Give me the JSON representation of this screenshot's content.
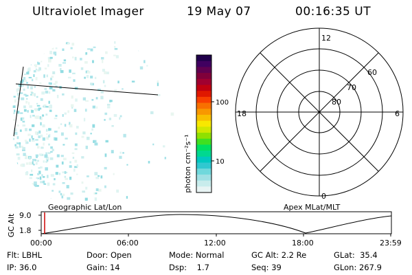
{
  "header": {
    "instrument": "Ultraviolet Imager",
    "date": "19 May 07",
    "time": "00:16:35 UT"
  },
  "colorbar": {
    "unit_label": "photon cm⁻²s⁻¹",
    "tick_labels": [
      "100",
      "10"
    ],
    "colors": [
      "#e8f4f4",
      "#c8ecec",
      "#a0e0e4",
      "#70d8dc",
      "#30c8d0",
      "#00c8c0",
      "#00d890",
      "#00e060",
      "#40e020",
      "#90e000",
      "#d0e800",
      "#f8e800",
      "#f8c000",
      "#f89800",
      "#f87000",
      "#f84000",
      "#e01800",
      "#c00010",
      "#a00030",
      "#80003a",
      "#600050",
      "#400060",
      "#20004a"
    ]
  },
  "polar_plot": {
    "mlt_labels": {
      "top": "12",
      "bottom": "0",
      "left": "18",
      "right": "6"
    },
    "lat_labels": [
      "60",
      "70",
      "80"
    ]
  },
  "labels": {
    "left_panel": "Geographic Lat/Lon",
    "right_panel": "Apex MLat/MLT"
  },
  "altitude_plot": {
    "axis_label": "GC Alt",
    "y_ticks": [
      "9.0",
      "1.8"
    ],
    "time_ticks": [
      "00:00",
      "06:00",
      "12:00",
      "18:00",
      "23:59"
    ],
    "marker_color": "#cc0000"
  },
  "info": {
    "filter": {
      "label": "Flt:",
      "value": "LBHL"
    },
    "ip": {
      "label": "IP:",
      "value": "36.0"
    },
    "door": {
      "label": "Door:",
      "value": "Open"
    },
    "gain": {
      "label": "Gain:",
      "value": "14"
    },
    "mode": {
      "label": "Mode:",
      "value": "Normal"
    },
    "dsp": {
      "label": "Dsp:",
      "value": "1.7"
    },
    "gc_alt": {
      "label": "GC Alt:",
      "value": "2.2 Re"
    },
    "seq": {
      "label": "Seq:",
      "value": "39"
    },
    "glat": {
      "label": "GLat:",
      "value": "35.4"
    },
    "glon": {
      "label": "GLon:",
      "value": "267.9"
    }
  }
}
